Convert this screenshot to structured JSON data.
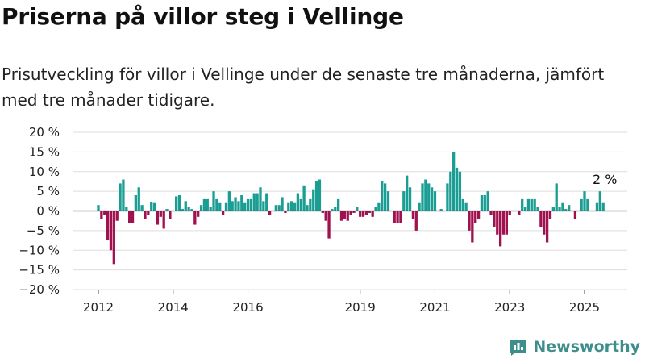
{
  "header": {
    "title": "Priserna på villor steg i Vellinge",
    "subtitle": "Prisutveckling för villor i Vellinge under de senaste tre månaderna, jämfört med tre månader tidigare."
  },
  "branding": {
    "name": "Newsworthy",
    "logo_icon": "bar-chart-icon"
  },
  "colors": {
    "positive": "#1a9e94",
    "negative": "#a0114f",
    "grid": "#dddddd",
    "zero_line": "#333333",
    "brand": "#3e8f8c"
  },
  "chart_data": {
    "type": "bar",
    "title": "",
    "xlabel": "",
    "ylabel": "",
    "ylim": [
      -20,
      20
    ],
    "y_ticks": [
      20,
      15,
      10,
      5,
      0,
      -5,
      -10,
      -15,
      -20
    ],
    "y_tick_labels": [
      "20 %",
      "15 %",
      "10 %",
      "5 %",
      "0 %",
      "−5 %",
      "−10 %",
      "−15 %",
      "−20 %"
    ],
    "x_tick_labels": [
      {
        "label": "2012",
        "date": "2012-01"
      },
      {
        "label": "2014",
        "date": "2014-01"
      },
      {
        "label": "2016",
        "date": "2016-01"
      },
      {
        "label": "2019",
        "date": "2019-01"
      },
      {
        "label": "2021",
        "date": "2021-01"
      },
      {
        "label": "2023",
        "date": "2023-01"
      },
      {
        "label": "2025",
        "date": "2025-01"
      }
    ],
    "start_date": "2012-01",
    "values": [
      1.5,
      -2,
      -1,
      -7.5,
      -10,
      -13.5,
      -2.5,
      7,
      8,
      1,
      -3,
      -3,
      4,
      6,
      1.5,
      -2,
      -1,
      2.2,
      2,
      -3.5,
      -1.5,
      -4.5,
      0.5,
      -2,
      0,
      3.7,
      4,
      0.5,
      2.5,
      1,
      0.5,
      -3.5,
      -1.5,
      1.5,
      3,
      3,
      1,
      5,
      3,
      2,
      -1,
      2,
      5,
      2.5,
      3.5,
      2.5,
      4,
      2,
      3,
      3,
      4.5,
      4.5,
      6,
      2.5,
      4.5,
      -1,
      0,
      1.5,
      1.5,
      3.5,
      -0.5,
      2,
      2.5,
      2,
      4.5,
      3,
      6.5,
      1.5,
      3,
      5.5,
      7.5,
      8,
      -0.5,
      -2.5,
      -7,
      0.5,
      1,
      3,
      -2.5,
      -2,
      -2.5,
      -1,
      -0.5,
      1,
      -1.5,
      -1.5,
      -1,
      -0.5,
      -1.5,
      1,
      2,
      7.5,
      7,
      5,
      0,
      -3,
      -3,
      -3,
      5,
      9,
      6,
      -2,
      -5,
      2,
      7,
      8,
      7,
      6,
      5,
      0,
      0.5,
      0,
      7,
      10,
      15,
      11,
      10,
      3,
      2,
      -5,
      -8,
      -3,
      -2,
      4,
      4,
      5,
      -1,
      -4,
      -6,
      -9,
      -6,
      -6,
      -1,
      0,
      0,
      -1,
      3,
      1,
      3,
      3,
      3,
      1,
      -4,
      -6,
      -8,
      -2,
      1,
      7,
      1,
      2,
      0.5,
      1.5,
      0,
      -2,
      0,
      3,
      5,
      3,
      0,
      0,
      2,
      5,
      2
    ],
    "highlight": {
      "label": "2 %",
      "date": "2025-07",
      "value": 2
    }
  }
}
